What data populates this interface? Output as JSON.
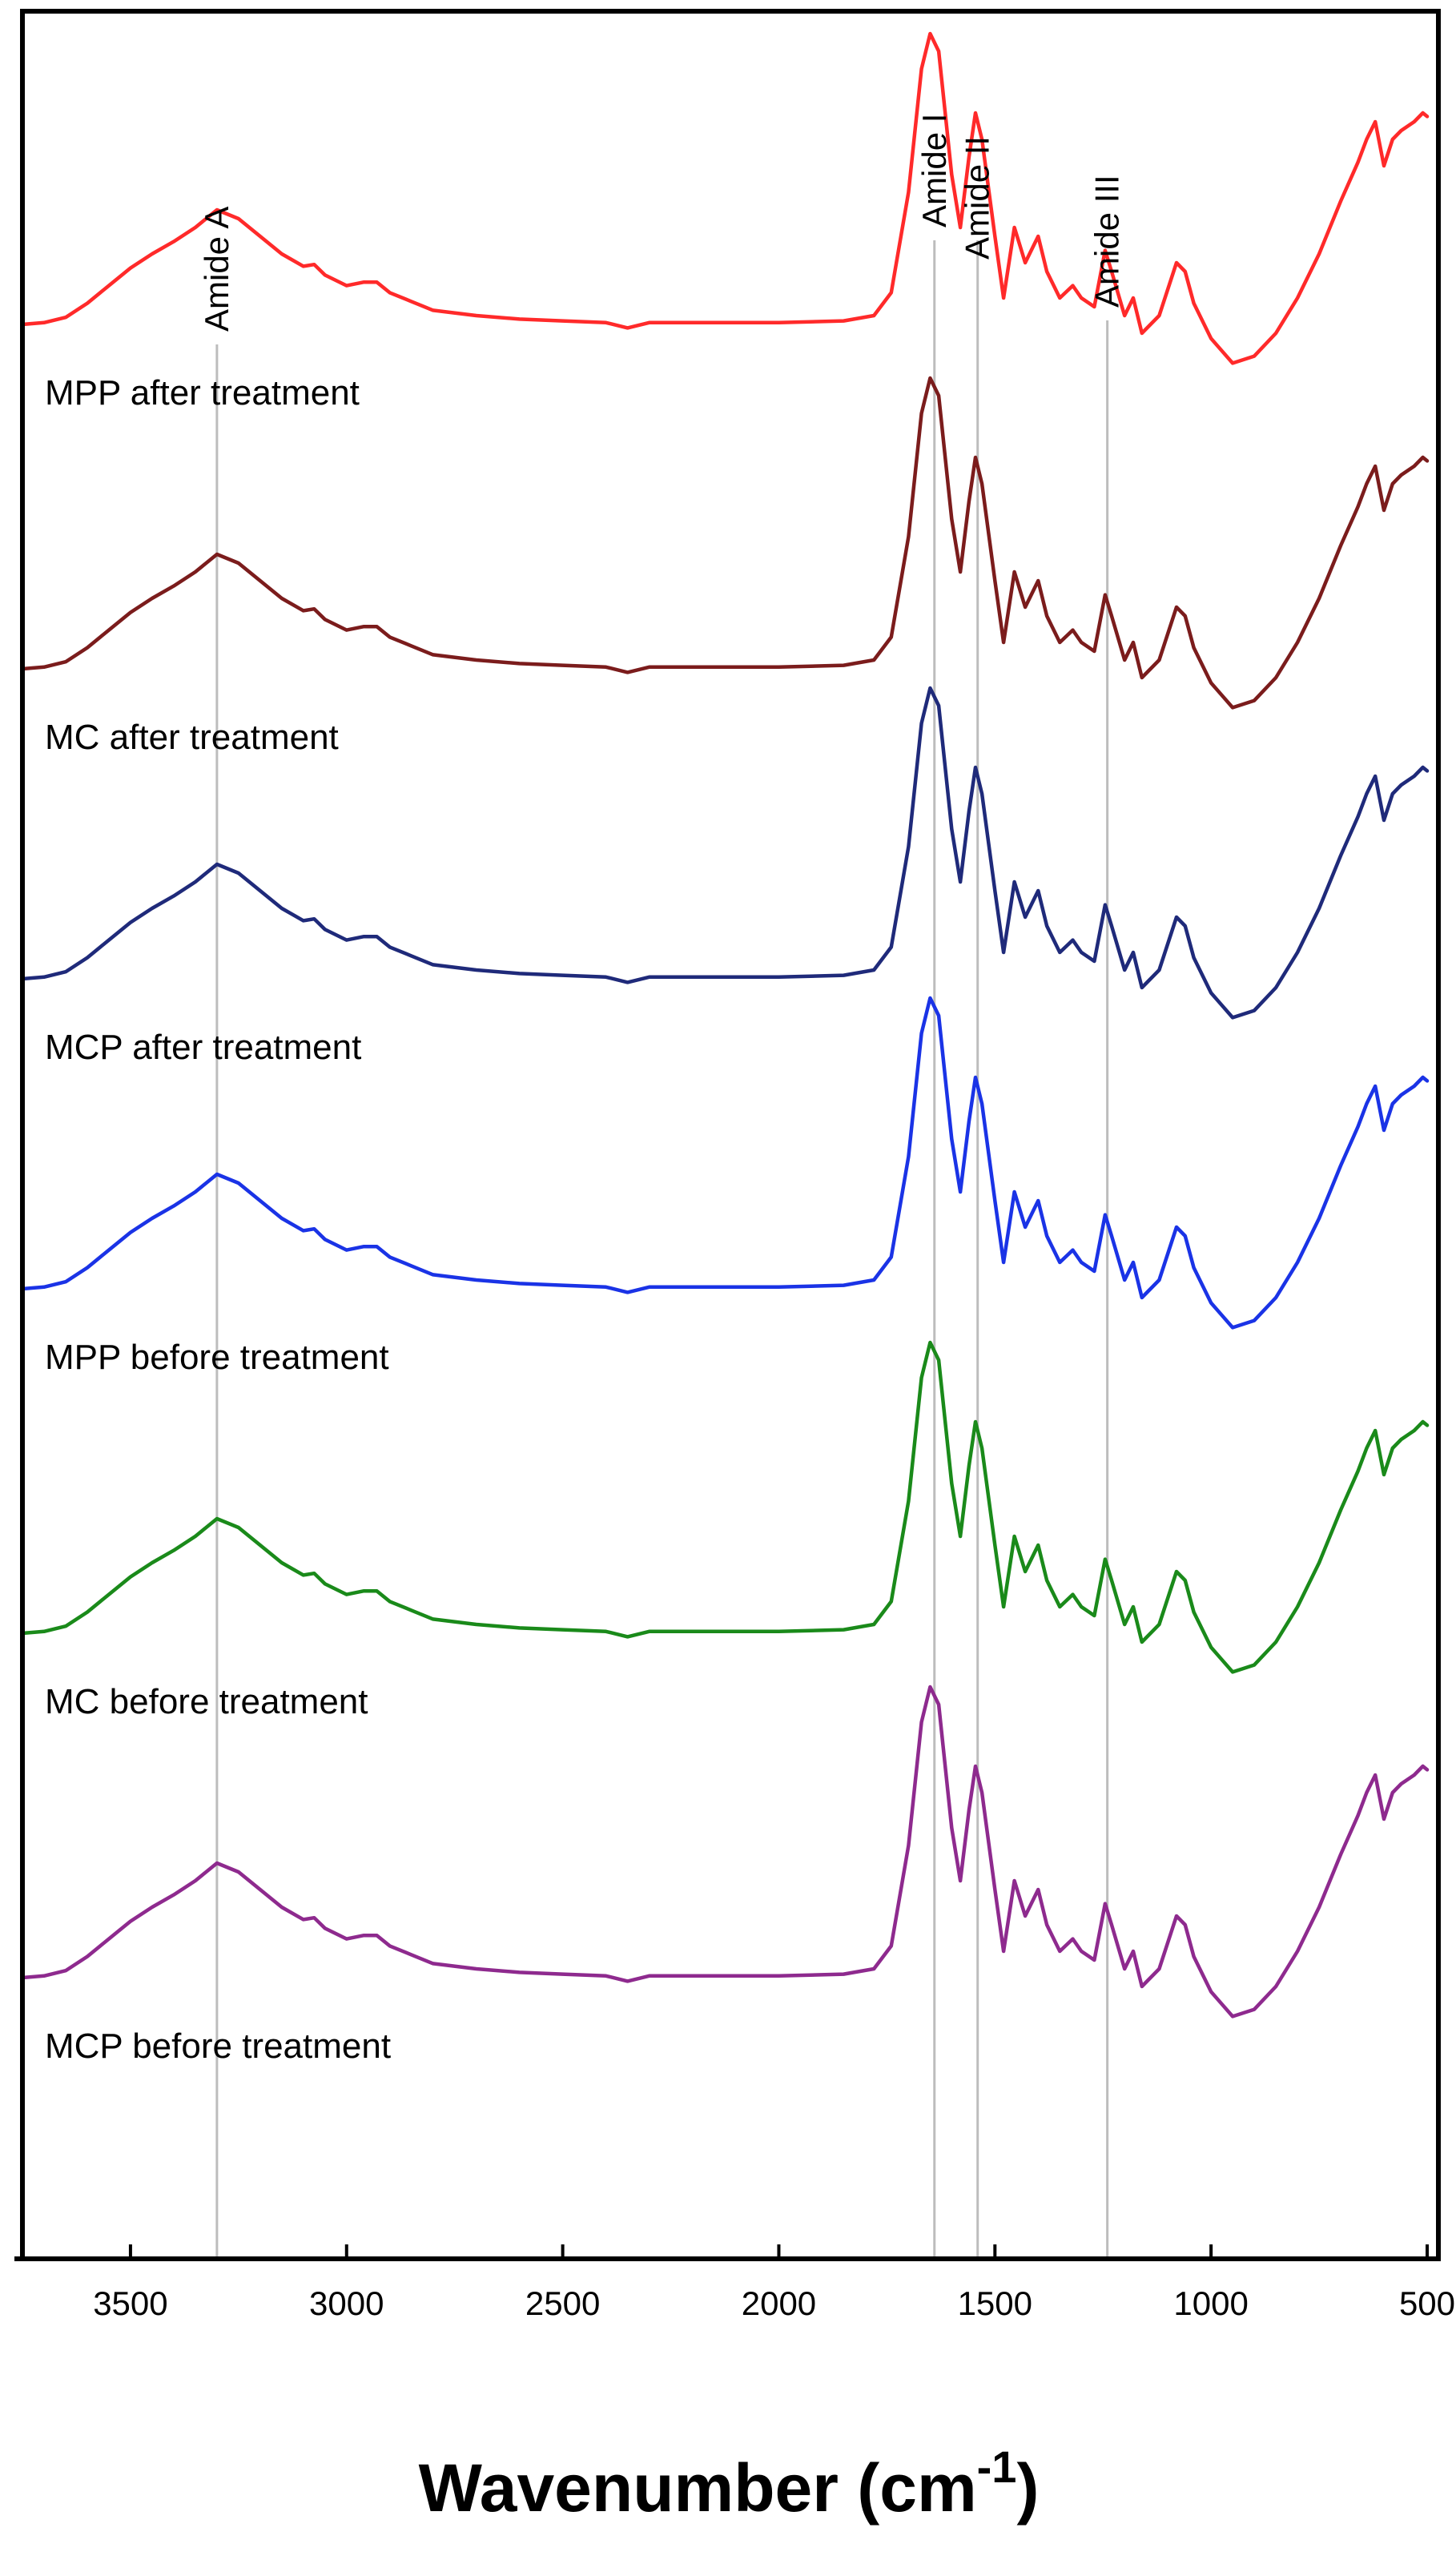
{
  "chart_data": {
    "type": "line",
    "title": "",
    "xlabel": "Wavenumber (cm",
    "xlabel_superscript": "-1",
    "xlabel_suffix": ")",
    "ylabel": "",
    "xlim": [
      3750,
      500
    ],
    "x_reversed": true,
    "x_ticks": [
      3500,
      3000,
      2500,
      2000,
      1500,
      1000,
      500
    ],
    "grid": false,
    "reference_lines": [
      {
        "label": "Amide A",
        "x": 3300
      },
      {
        "label": "Amide I",
        "x": 1640
      },
      {
        "label": "Amide II",
        "x": 1540
      },
      {
        "label": "Amide III",
        "x": 1240
      }
    ],
    "series": [
      {
        "name": "MPP after treatment",
        "color": "#ff2a2a",
        "offset": 5.0
      },
      {
        "name": "MC after treatment",
        "color": "#7b1c1c",
        "offset": 4.0
      },
      {
        "name": "MCP after treatment",
        "color": "#1f2a7a",
        "offset": 3.1
      },
      {
        "name": "MPP before treatment",
        "color": "#1a33e6",
        "offset": 2.2
      },
      {
        "name": "MC before treatment",
        "color": "#1a8a1a",
        "offset": 1.2
      },
      {
        "name": "MCP before treatment",
        "color": "#8e2a8e",
        "offset": 0.2
      }
    ],
    "spectrum_profile": [
      [
        3750,
        0.0
      ],
      [
        3700,
        0.01
      ],
      [
        3650,
        0.04
      ],
      [
        3600,
        0.12
      ],
      [
        3550,
        0.22
      ],
      [
        3500,
        0.32
      ],
      [
        3450,
        0.4
      ],
      [
        3400,
        0.47
      ],
      [
        3350,
        0.55
      ],
      [
        3300,
        0.65
      ],
      [
        3250,
        0.6
      ],
      [
        3200,
        0.5
      ],
      [
        3150,
        0.4
      ],
      [
        3100,
        0.33
      ],
      [
        3075,
        0.34
      ],
      [
        3050,
        0.28
      ],
      [
        3000,
        0.22
      ],
      [
        2960,
        0.24
      ],
      [
        2930,
        0.24
      ],
      [
        2900,
        0.18
      ],
      [
        2850,
        0.13
      ],
      [
        2800,
        0.08
      ],
      [
        2700,
        0.05
      ],
      [
        2600,
        0.03
      ],
      [
        2500,
        0.02
      ],
      [
        2400,
        0.01
      ],
      [
        2350,
        -0.02
      ],
      [
        2300,
        0.01
      ],
      [
        2200,
        0.01
      ],
      [
        2000,
        0.01
      ],
      [
        1850,
        0.02
      ],
      [
        1780,
        0.05
      ],
      [
        1740,
        0.18
      ],
      [
        1700,
        0.75
      ],
      [
        1670,
        1.45
      ],
      [
        1650,
        1.65
      ],
      [
        1630,
        1.55
      ],
      [
        1600,
        0.85
      ],
      [
        1580,
        0.55
      ],
      [
        1560,
        0.95
      ],
      [
        1545,
        1.2
      ],
      [
        1530,
        1.05
      ],
      [
        1500,
        0.5
      ],
      [
        1480,
        0.15
      ],
      [
        1455,
        0.55
      ],
      [
        1430,
        0.35
      ],
      [
        1400,
        0.5
      ],
      [
        1380,
        0.3
      ],
      [
        1350,
        0.15
      ],
      [
        1320,
        0.22
      ],
      [
        1300,
        0.15
      ],
      [
        1270,
        0.1
      ],
      [
        1245,
        0.42
      ],
      [
        1230,
        0.3
      ],
      [
        1200,
        0.05
      ],
      [
        1180,
        0.15
      ],
      [
        1160,
        -0.05
      ],
      [
        1120,
        0.05
      ],
      [
        1080,
        0.35
      ],
      [
        1060,
        0.3
      ],
      [
        1040,
        0.12
      ],
      [
        1000,
        -0.08
      ],
      [
        950,
        -0.22
      ],
      [
        900,
        -0.18
      ],
      [
        850,
        -0.05
      ],
      [
        800,
        0.15
      ],
      [
        750,
        0.4
      ],
      [
        700,
        0.7
      ],
      [
        660,
        0.92
      ],
      [
        640,
        1.05
      ],
      [
        620,
        1.15
      ],
      [
        600,
        0.9
      ],
      [
        580,
        1.05
      ],
      [
        560,
        1.1
      ],
      [
        530,
        1.15
      ],
      [
        510,
        1.2
      ],
      [
        500,
        1.18
      ]
    ],
    "legend": "inline labels under each trace"
  }
}
